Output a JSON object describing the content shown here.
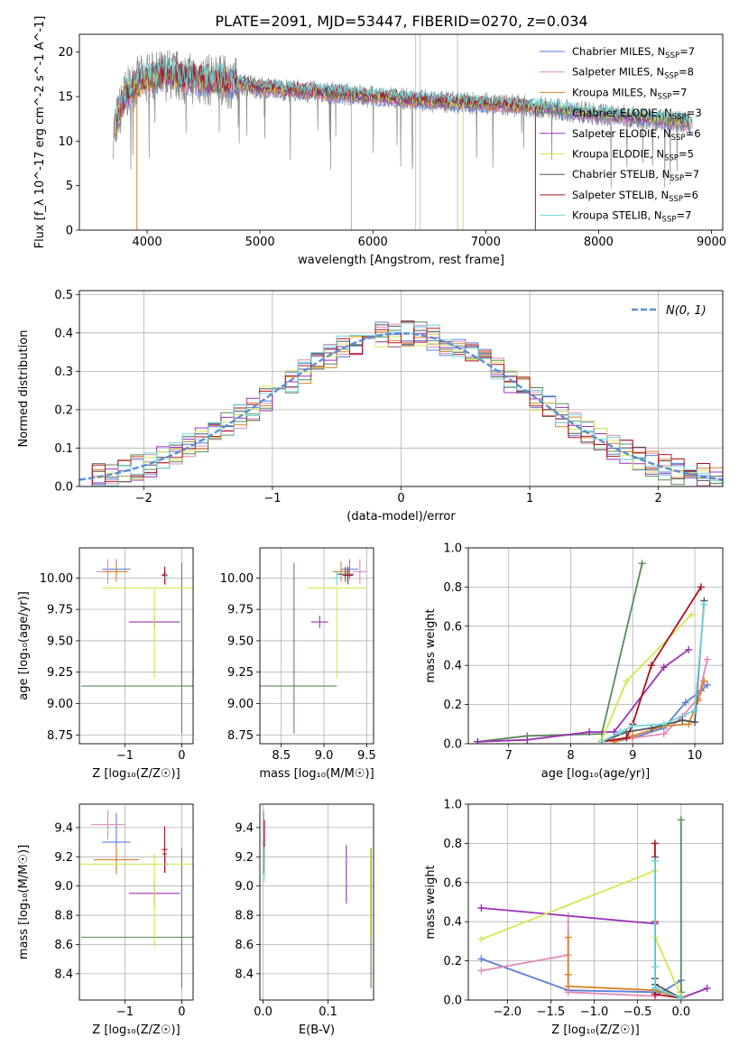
{
  "figure": {
    "title": "PLATE=2091, MJD=53447, FIBERID=0270, z=0.034"
  },
  "colors": {
    "Chabrier MILES": "#5b7fdb",
    "Salpeter MILES": "#e38ab5",
    "Kroupa MILES": "#d9822b",
    "Chabrier ELODIE": "#5a8a5a",
    "Salpeter ELODIE": "#9b30b8",
    "Kroupa ELODIE": "#d4e84f",
    "Chabrier STELIB": "#555555",
    "Salpeter STELIB": "#b01020",
    "Kroupa STELIB": "#6fd6dc",
    "data": "#888888",
    "gaussian": "#5b8fd6",
    "grid": "#b0b0b0"
  },
  "chart_data": [
    {
      "id": "spectrum",
      "type": "line",
      "xlabel": "wavelength [Angstrom, rest frame]",
      "ylabel": "Flux [f_λ 10^-17 erg cm^-2 s^-1 A^-1]",
      "xlim": [
        3400,
        9100
      ],
      "ylim": [
        0,
        22
      ],
      "xticks": [
        4000,
        5000,
        6000,
        7000,
        8000,
        9000
      ],
      "yticks": [
        0,
        5,
        10,
        15,
        20
      ],
      "grid": false,
      "legend_position": "top-right",
      "legend": [
        {
          "name": "Chabrier MILES",
          "nssp": "7"
        },
        {
          "name": "Salpeter MILES",
          "nssp": "8"
        },
        {
          "name": "Kroupa MILES",
          "nssp": "7"
        },
        {
          "name": "Chabrier ELODIE",
          "nssp": "3"
        },
        {
          "name": "Salpeter ELODIE",
          "nssp": "6"
        },
        {
          "name": "Kroupa ELODIE",
          "nssp": "5"
        },
        {
          "name": "Chabrier STELIB",
          "nssp": "7"
        },
        {
          "name": "Salpeter STELIB",
          "nssp": "6"
        },
        {
          "name": "Kroupa STELIB",
          "nssp": "7"
        }
      ],
      "continuum": {
        "wavelength": [
          3700,
          3800,
          3900,
          4000,
          4200,
          4400,
          4600,
          4800,
          5000,
          5500,
          6000,
          6500,
          7000,
          7500,
          8000,
          8500,
          8830
        ],
        "flux": [
          11,
          15,
          16.5,
          17,
          17.5,
          17,
          16.8,
          16.5,
          16,
          15.5,
          15,
          14.5,
          14.2,
          13.8,
          13,
          12.5,
          12
        ]
      }
    },
    {
      "id": "residuals",
      "type": "step",
      "xlabel": "(data-model)/error",
      "ylabel": "Normed distribution",
      "xlim": [
        -2.5,
        2.5
      ],
      "ylim": [
        0,
        0.51
      ],
      "xticks": [
        -2,
        -1,
        0,
        1,
        2
      ],
      "xtick_labels": [
        "−2",
        "−1",
        "0",
        "1",
        "2"
      ],
      "yticks": [
        0,
        0.1,
        0.2,
        0.3,
        0.4,
        0.5
      ],
      "ytick_labels": [
        "0.0",
        "0.1",
        "0.2",
        "0.3",
        "0.4",
        "0.5"
      ],
      "grid": true,
      "legend_position": "top-right",
      "gaussian_label": "N(0, 1)"
    },
    {
      "id": "age_vs_Z",
      "type": "errorbar",
      "xlabel": "Z [log10(Z/Z☉)]",
      "ylabel": "age  [log10(age/yr)]",
      "xlim": [
        -1.8,
        0.2
      ],
      "ylim": [
        8.68,
        10.24
      ],
      "xticks": [
        -1,
        0
      ],
      "xtick_labels": [
        "−1",
        "0"
      ],
      "yticks": [
        8.75,
        9.0,
        9.25,
        9.5,
        9.75,
        10.0
      ],
      "ytick_labels": [
        "8.75",
        "9.00",
        "9.25",
        "9.50",
        "9.75",
        "10.00"
      ],
      "grid": true,
      "points": [
        {
          "model": "Chabrier MILES",
          "x": -1.15,
          "xerr": 0.25,
          "y": 10.07,
          "yerr": 0.08
        },
        {
          "model": "Salpeter MILES",
          "x": -1.3,
          "xerr": 0.2,
          "y": 10.05,
          "yerr": 0.1
        },
        {
          "model": "Kroupa MILES",
          "x": -1.15,
          "xerr": 0.2,
          "y": 10.05,
          "yerr": 0.08
        },
        {
          "model": "Chabrier ELODIE",
          "x": -0.02,
          "xerr": 1.75,
          "y": 9.14,
          "yerr": 0.0
        },
        {
          "model": "Chabrier ELODIE",
          "x": 0.0,
          "xerr": 0.0,
          "y": 9.44,
          "yerr": 0.68
        },
        {
          "model": "Salpeter ELODIE",
          "x": -0.48,
          "xerr": 0.45,
          "y": 9.65,
          "yerr": 0.05
        },
        {
          "model": "Kroupa ELODIE",
          "x": -0.45,
          "xerr": 0.95,
          "y": 9.92,
          "yerr": 0.0
        },
        {
          "model": "Kroupa ELODIE",
          "x": -0.48,
          "xerr": 0.0,
          "y": 9.56,
          "yerr": 0.36
        },
        {
          "model": "Chabrier STELIB",
          "x": -0.3,
          "xerr": 0.04,
          "y": 10.03,
          "yerr": 0.06
        },
        {
          "model": "Salpeter STELIB",
          "x": -0.3,
          "xerr": 0.05,
          "y": 10.02,
          "yerr": 0.07
        },
        {
          "model": "Kroupa STELIB",
          "x": -0.28,
          "xerr": 0.04,
          "y": 10.0,
          "yerr": 0.06
        }
      ]
    },
    {
      "id": "age_vs_mass",
      "type": "errorbar",
      "xlabel": "mass [log10(M/M☉)]",
      "ylabel": "",
      "xlim": [
        8.25,
        9.58
      ],
      "ylim": [
        8.68,
        10.24
      ],
      "xticks": [
        8.5,
        9.0,
        9.5
      ],
      "xtick_labels": [
        "8.5",
        "9.0",
        "9.5"
      ],
      "yticks": [
        8.75,
        9.0,
        9.25,
        9.5,
        9.75,
        10.0
      ],
      "ytick_labels": [
        "8.75",
        "9.00",
        "9.25",
        "9.50",
        "9.75",
        "10.00"
      ],
      "grid": true,
      "points": [
        {
          "model": "Chabrier MILES",
          "x": 9.3,
          "xerr": 0.1,
          "y": 10.07,
          "yerr": 0.08
        },
        {
          "model": "Salpeter MILES",
          "x": 9.42,
          "xerr": 0.08,
          "y": 10.05,
          "yerr": 0.1
        },
        {
          "model": "Kroupa MILES",
          "x": 9.2,
          "xerr": 0.1,
          "y": 10.05,
          "yerr": 0.08
        },
        {
          "model": "Chabrier ELODIE",
          "x": 8.65,
          "xerr": 0.5,
          "y": 9.14,
          "yerr": 0.0
        },
        {
          "model": "Chabrier ELODIE",
          "x": 8.65,
          "xerr": 0.0,
          "y": 9.44,
          "yerr": 0.68
        },
        {
          "model": "Salpeter ELODIE",
          "x": 8.95,
          "xerr": 0.1,
          "y": 9.65,
          "yerr": 0.05
        },
        {
          "model": "Kroupa ELODIE",
          "x": 9.15,
          "xerr": 0.35,
          "y": 9.92,
          "yerr": 0.0
        },
        {
          "model": "Kroupa ELODIE",
          "x": 9.15,
          "xerr": 0.0,
          "y": 9.56,
          "yerr": 0.36
        },
        {
          "model": "Chabrier STELIB",
          "x": 9.25,
          "xerr": 0.1,
          "y": 10.03,
          "yerr": 0.06
        },
        {
          "model": "Salpeter STELIB",
          "x": 9.28,
          "xerr": 0.06,
          "y": 10.02,
          "yerr": 0.07
        },
        {
          "model": "Kroupa STELIB",
          "x": 9.15,
          "xerr": 0.05,
          "y": 10.0,
          "yerr": 0.06
        }
      ]
    },
    {
      "id": "weight_vs_age",
      "type": "line",
      "xlabel": "age  [log10(age/yr)]",
      "ylabel": "mass weight",
      "xlim": [
        6.35,
        10.45
      ],
      "ylim": [
        0,
        1.0
      ],
      "xticks": [
        7,
        8,
        9,
        10
      ],
      "xtick_labels": [
        "7",
        "8",
        "9",
        "10"
      ],
      "yticks": [
        0,
        0.2,
        0.4,
        0.6,
        0.8,
        1.0
      ],
      "ytick_labels": [
        "0.0",
        "0.2",
        "0.4",
        "0.6",
        "0.8",
        "1.0"
      ],
      "grid": true,
      "series": [
        {
          "model": "Chabrier MILES",
          "x": [
            8.7,
            9.0,
            9.5,
            9.85,
            10.1,
            10.2
          ],
          "y": [
            0.01,
            0.03,
            0.08,
            0.21,
            0.27,
            0.3
          ]
        },
        {
          "model": "Salpeter MILES",
          "x": [
            8.5,
            9.0,
            9.5,
            9.8,
            10.05,
            10.2
          ],
          "y": [
            0.01,
            0.03,
            0.05,
            0.14,
            0.23,
            0.43
          ]
        },
        {
          "model": "Kroupa MILES",
          "x": [
            8.7,
            9.0,
            9.5,
            9.9,
            10.05,
            10.15
          ],
          "y": [
            0.01,
            0.04,
            0.09,
            0.1,
            0.22,
            0.32
          ]
        },
        {
          "model": "Chabrier ELODIE",
          "x": [
            6.5,
            7.3,
            8.5,
            9.15
          ],
          "y": [
            0.01,
            0.04,
            0.05,
            0.92
          ]
        },
        {
          "model": "Salpeter ELODIE",
          "x": [
            6.5,
            7.3,
            8.3,
            8.7,
            9.5,
            9.9
          ],
          "y": [
            0.01,
            0.02,
            0.06,
            0.06,
            0.39,
            0.48
          ]
        },
        {
          "model": "Kroupa ELODIE",
          "x": [
            8.5,
            8.9,
            9.95
          ],
          "y": [
            0.02,
            0.32,
            0.66
          ]
        },
        {
          "model": "Chabrier STELIB",
          "x": [
            8.5,
            8.9,
            9.3,
            9.8,
            10.0,
            10.15
          ],
          "y": [
            0.01,
            0.06,
            0.08,
            0.12,
            0.11,
            0.73
          ]
        },
        {
          "model": "Salpeter STELIB",
          "x": [
            8.5,
            8.9,
            9.0,
            9.3,
            10.1
          ],
          "y": [
            0.01,
            0.03,
            0.1,
            0.4,
            0.8
          ]
        },
        {
          "model": "Kroupa STELIB",
          "x": [
            8.5,
            8.8,
            9.0,
            9.5,
            10.0,
            10.15
          ],
          "y": [
            0.01,
            0.06,
            0.09,
            0.1,
            0.17,
            0.71
          ]
        }
      ]
    },
    {
      "id": "mass_vs_Z",
      "type": "errorbar",
      "xlabel": "Z [log10(Z/Z☉)]",
      "ylabel": "mass [log10(M/M☉)]",
      "xlim": [
        -1.8,
        0.2
      ],
      "ylim": [
        8.22,
        9.56
      ],
      "xticks": [
        -1,
        0
      ],
      "xtick_labels": [
        "−1",
        "0"
      ],
      "yticks": [
        8.4,
        8.6,
        8.8,
        9.0,
        9.2,
        9.4
      ],
      "ytick_labels": [
        "8.4",
        "8.6",
        "8.8",
        "9.0",
        "9.2",
        "9.4"
      ],
      "grid": true,
      "points": [
        {
          "model": "Chabrier MILES",
          "x": -1.15,
          "xerr": 0.25,
          "y": 9.3,
          "yerr": 0.2
        },
        {
          "model": "Salpeter MILES",
          "x": -1.3,
          "xerr": 0.3,
          "y": 9.42,
          "yerr": 0.1
        },
        {
          "model": "Kroupa MILES",
          "x": -1.15,
          "xerr": 0.4,
          "y": 9.18,
          "yerr": 0.1
        },
        {
          "model": "Chabrier ELODIE",
          "x": -0.02,
          "xerr": 1.75,
          "y": 8.65,
          "yerr": 0.0
        },
        {
          "model": "Chabrier ELODIE",
          "x": 0.0,
          "xerr": 0.0,
          "y": 8.78,
          "yerr": 0.48
        },
        {
          "model": "Salpeter ELODIE",
          "x": -0.48,
          "xerr": 0.45,
          "y": 8.95,
          "yerr": 0.08
        },
        {
          "model": "Kroupa ELODIE",
          "x": -0.45,
          "xerr": 1.35,
          "y": 9.15,
          "yerr": 0.0
        },
        {
          "model": "Kroupa ELODIE",
          "x": -0.48,
          "xerr": 0.0,
          "y": 8.9,
          "yerr": 0.32
        },
        {
          "model": "Chabrier STELIB",
          "x": -0.3,
          "xerr": 0.04,
          "y": 9.22,
          "yerr": 0.06
        },
        {
          "model": "Salpeter STELIB",
          "x": -0.3,
          "xerr": 0.05,
          "y": 9.25,
          "yerr": 0.16
        },
        {
          "model": "Kroupa STELIB",
          "x": -0.28,
          "xerr": 0.04,
          "y": 9.15,
          "yerr": 0.06
        }
      ]
    },
    {
      "id": "mass_vs_EBV",
      "type": "errorbar",
      "xlabel": "E(B-V)",
      "ylabel": "",
      "xlim": [
        -0.005,
        0.17
      ],
      "ylim": [
        8.22,
        9.56
      ],
      "xticks": [
        0.0,
        0.1
      ],
      "xtick_labels": [
        "0.0",
        "0.1"
      ],
      "yticks": [
        8.4,
        8.6,
        8.8,
        9.0,
        9.2,
        9.4
      ],
      "ytick_labels": [
        "8.4",
        "8.6",
        "8.8",
        "9.0",
        "9.2",
        "9.4"
      ],
      "grid": true,
      "points": [
        {
          "model": "Chabrier MILES",
          "x": 0.001,
          "xerr": 0.0,
          "y": 9.3,
          "yerr": 0.2
        },
        {
          "model": "Salpeter MILES",
          "x": 0.001,
          "xerr": 0.0,
          "y": 9.42,
          "yerr": 0.1
        },
        {
          "model": "Kroupa MILES",
          "x": 0.001,
          "xerr": 0.0,
          "y": 9.18,
          "yerr": 0.1
        },
        {
          "model": "Chabrier ELODIE",
          "x": 0.166,
          "xerr": 0.0,
          "y": 8.78,
          "yerr": 0.48
        },
        {
          "model": "Salpeter ELODIE",
          "x": 0.128,
          "xerr": 0.0,
          "y": 9.08,
          "yerr": 0.2
        },
        {
          "model": "Kroupa ELODIE",
          "x": 0.165,
          "xerr": 0.0,
          "y": 8.95,
          "yerr": 0.3
        },
        {
          "model": "Chabrier STELIB",
          "x": 0.002,
          "xerr": 0.0,
          "y": 9.22,
          "yerr": 0.06
        },
        {
          "model": "Salpeter STELIB",
          "x": 0.002,
          "xerr": 0.0,
          "y": 9.35,
          "yerr": 0.1
        },
        {
          "model": "Kroupa STELIB",
          "x": 0.002,
          "xerr": 0.0,
          "y": 9.15,
          "yerr": 0.12
        }
      ]
    },
    {
      "id": "weight_vs_Z",
      "type": "line",
      "xlabel": "Z [log10(Z/Z☉)]",
      "ylabel": "mass weight",
      "xlim": [
        -2.45,
        0.48
      ],
      "ylim": [
        0,
        1.0
      ],
      "xticks": [
        -2.0,
        -1.5,
        -1.0,
        -0.5,
        0.0
      ],
      "xtick_labels": [
        "−2.0",
        "−1.5",
        "−1.0",
        "−0.5",
        "0.0"
      ],
      "yticks": [
        0,
        0.2,
        0.4,
        0.6,
        0.8,
        1.0
      ],
      "ytick_labels": [
        "0.0",
        "0.2",
        "0.4",
        "0.6",
        "0.8",
        "1.0"
      ],
      "grid": true,
      "series": [
        {
          "model": "Chabrier MILES",
          "x": [
            -2.3,
            -1.3,
            -0.3,
            -0.3,
            0.0,
            0.0
          ],
          "y": [
            0.21,
            0.05,
            0.04,
            0.02,
            0.1,
            0.01
          ]
        },
        {
          "model": "Salpeter MILES",
          "x": [
            -2.3,
            -1.3,
            -1.3,
            -1.3,
            -0.3,
            -0.3,
            0.0
          ],
          "y": [
            0.15,
            0.23,
            0.43,
            0.04,
            0.02,
            0.06,
            0.01
          ]
        },
        {
          "model": "Kroupa MILES",
          "x": [
            -1.3,
            -1.3,
            -1.3,
            -0.3,
            0.0
          ],
          "y": [
            0.32,
            0.13,
            0.07,
            0.05,
            0.01
          ]
        },
        {
          "model": "Chabrier ELODIE",
          "x": [
            0.0,
            0.0,
            0.0
          ],
          "y": [
            0.92,
            0.04,
            0.01
          ]
        },
        {
          "model": "Salpeter ELODIE",
          "x": [
            -2.3,
            -0.3,
            -0.3,
            0.0,
            0.3
          ],
          "y": [
            0.47,
            0.39,
            0.06,
            0.01,
            0.06
          ]
        },
        {
          "model": "Kroupa ELODIE",
          "x": [
            -2.3,
            -0.3,
            -0.3,
            0.0
          ],
          "y": [
            0.31,
            0.66,
            0.32,
            0.02
          ]
        },
        {
          "model": "Chabrier STELIB",
          "x": [
            -0.3,
            -0.3,
            -0.3,
            0.0
          ],
          "y": [
            0.73,
            0.11,
            0.08,
            0.01
          ]
        },
        {
          "model": "Salpeter STELIB",
          "x": [
            -0.3,
            -0.3,
            -0.3,
            0.0
          ],
          "y": [
            0.8,
            0.4,
            0.03,
            0.01
          ]
        },
        {
          "model": "Kroupa STELIB",
          "x": [
            -0.3,
            -0.3,
            -0.3,
            0.0
          ],
          "y": [
            0.71,
            0.17,
            0.06,
            0.01
          ]
        }
      ]
    }
  ]
}
